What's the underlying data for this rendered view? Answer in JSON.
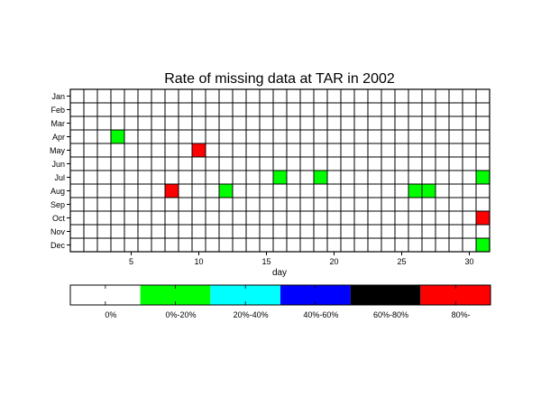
{
  "chart_data": {
    "type": "heatmap",
    "title": "Rate of missing data at TAR in 2002",
    "xlabel": "day",
    "ylabel": "",
    "x_ticks": [
      5,
      10,
      15,
      20,
      25,
      30
    ],
    "days": 31,
    "months": [
      "Jan",
      "Feb",
      "Mar",
      "Apr",
      "May",
      "Jun",
      "Jul",
      "Aug",
      "Sep",
      "Oct",
      "Nov",
      "Dec"
    ],
    "grid": true,
    "colorbar": {
      "bins": [
        {
          "label": "0%",
          "color": "#ffffff"
        },
        {
          "label": "0%-20%",
          "color": "#00ff00"
        },
        {
          "label": "20%-40%",
          "color": "#00ffff"
        },
        {
          "label": "40%-60%",
          "color": "#0000ff"
        },
        {
          "label": "60%-80%",
          "color": "#000000"
        },
        {
          "label": "80%-",
          "color": "#ff0000"
        }
      ]
    },
    "cells": [
      {
        "month": "Apr",
        "day": 4,
        "bin": "0%-20%"
      },
      {
        "month": "May",
        "day": 10,
        "bin": "80%-"
      },
      {
        "month": "Jul",
        "day": 16,
        "bin": "0%-20%"
      },
      {
        "month": "Jul",
        "day": 19,
        "bin": "0%-20%"
      },
      {
        "month": "Jul",
        "day": 31,
        "bin": "0%-20%"
      },
      {
        "month": "Aug",
        "day": 8,
        "bin": "80%-"
      },
      {
        "month": "Aug",
        "day": 12,
        "bin": "0%-20%"
      },
      {
        "month": "Aug",
        "day": 26,
        "bin": "0%-20%"
      },
      {
        "month": "Aug",
        "day": 27,
        "bin": "0%-20%"
      },
      {
        "month": "Oct",
        "day": 31,
        "bin": "80%-"
      },
      {
        "month": "Dec",
        "day": 31,
        "bin": "0%-20%"
      }
    ]
  }
}
